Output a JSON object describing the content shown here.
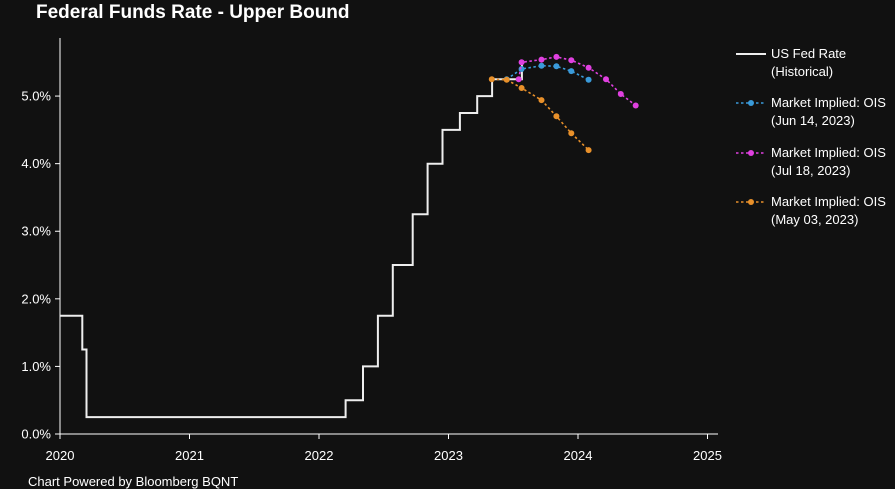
{
  "title": "Federal Funds Rate - Upper Bound",
  "footer": "Chart Powered by Bloomberg BQNT",
  "chart_data": {
    "type": "line",
    "title": "Federal Funds Rate - Upper Bound",
    "xlabel": "",
    "ylabel": "",
    "xlim": [
      2020.0,
      2025.1
    ],
    "ylim": [
      0.0,
      5.8
    ],
    "x_ticks": [
      2020,
      2021,
      2022,
      2023,
      2024,
      2025
    ],
    "y_ticks": [
      0,
      1,
      2,
      3,
      4,
      5
    ],
    "y_tick_labels": [
      "0.0%",
      "1.0%",
      "2.0%",
      "3.0%",
      "4.0%",
      "5.0%"
    ],
    "grid": false,
    "legend_position": "right",
    "background": "#111111",
    "series": [
      {
        "name": "US Fed Rate (Historical)",
        "legend_lines": [
          "US Fed Rate",
          "(Historical)"
        ],
        "style": "step",
        "color": "#eeeeee",
        "points": [
          [
            "2020-01-01",
            1.75
          ],
          [
            "2020-03-04",
            1.25
          ],
          [
            "2020-03-16",
            0.25
          ],
          [
            "2022-03-17",
            0.5
          ],
          [
            "2022-05-05",
            1.0
          ],
          [
            "2022-06-16",
            1.75
          ],
          [
            "2022-07-28",
            2.5
          ],
          [
            "2022-09-22",
            3.25
          ],
          [
            "2022-11-03",
            4.0
          ],
          [
            "2022-12-15",
            4.5
          ],
          [
            "2023-02-02",
            4.75
          ],
          [
            "2023-03-23",
            5.0
          ],
          [
            "2023-05-04",
            5.25
          ],
          [
            "2023-07-27",
            5.5
          ]
        ]
      },
      {
        "name": "Market Implied: OIS (Jun 14, 2023)",
        "legend_lines": [
          "Market Implied: OIS",
          "(Jun 14, 2023)"
        ],
        "style": "dotted-markers",
        "color": "#3a9ad9",
        "points": [
          [
            "2023-06-14",
            5.25
          ],
          [
            "2023-07-26",
            5.4
          ],
          [
            "2023-09-20",
            5.45
          ],
          [
            "2023-11-01",
            5.44
          ],
          [
            "2023-12-13",
            5.37
          ],
          [
            "2024-01-31",
            5.24
          ]
        ]
      },
      {
        "name": "Market Implied: OIS (Jul 18, 2023)",
        "legend_lines": [
          "Market Implied: OIS",
          "(Jul 18, 2023)"
        ],
        "style": "dotted-markers",
        "color": "#e040e0",
        "points": [
          [
            "2023-07-18",
            5.25
          ],
          [
            "2023-07-26",
            5.5
          ],
          [
            "2023-09-20",
            5.54
          ],
          [
            "2023-11-01",
            5.58
          ],
          [
            "2023-12-13",
            5.53
          ],
          [
            "2024-01-31",
            5.42
          ],
          [
            "2024-03-20",
            5.25
          ],
          [
            "2024-05-01",
            5.03
          ],
          [
            "2024-06-12",
            4.86
          ]
        ]
      },
      {
        "name": "Market Implied: OIS (May 03, 2023)",
        "legend_lines": [
          "Market Implied: OIS",
          "(May 03, 2023)"
        ],
        "style": "dotted-markers",
        "color": "#e8902a",
        "points": [
          [
            "2023-05-03",
            5.25
          ],
          [
            "2023-06-14",
            5.24
          ],
          [
            "2023-07-26",
            5.12
          ],
          [
            "2023-09-20",
            4.94
          ],
          [
            "2023-11-01",
            4.7
          ],
          [
            "2023-12-13",
            4.45
          ],
          [
            "2024-01-31",
            4.2
          ]
        ]
      }
    ]
  }
}
